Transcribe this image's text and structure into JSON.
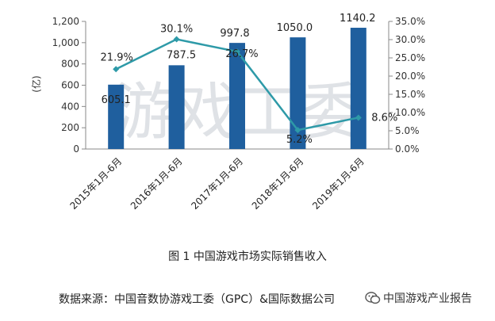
{
  "chart_data": {
    "type": "bar",
    "categories": [
      "2015年1月-6月",
      "2016年1月-6月",
      "2017年1月-6月",
      "2018年1月-6月",
      "2019年1月-6月"
    ],
    "series": [
      {
        "type": "bar",
        "values": [
          605.1,
          787.5,
          997.8,
          1050.0,
          1140.2
        ],
        "color": "#1f5f9e",
        "labels": [
          "605.1",
          "787.5",
          "997.8",
          "1050.0",
          "1140.2"
        ]
      },
      {
        "type": "line",
        "axis": "right",
        "values": [
          21.9,
          30.1,
          26.7,
          5.2,
          8.6
        ],
        "color": "#2e9aa8",
        "labels": [
          "21.9%",
          "30.1%",
          "26.7%",
          "5.2%",
          "8.6%"
        ]
      }
    ],
    "ylabel": "(亿)",
    "ylim": [
      0,
      1200
    ],
    "yticks": [
      "0",
      "200",
      "400",
      "600",
      "800",
      "1,000",
      "1,200"
    ],
    "y2lim": [
      0,
      35
    ],
    "y2ticks": [
      "0.0%",
      "5.0%",
      "10.0%",
      "15.0%",
      "20.0%",
      "25.0%",
      "30.0%",
      "35.0%"
    ],
    "watermark": "游戏工委",
    "caption": "图 1  中国游戏市场实际销售收入",
    "source": "数据来源：中国音数协游戏工委（GPC）&国际数据公司",
    "brand": "中国游戏产业报告",
    "brand_icon": "wechat-icon"
  }
}
